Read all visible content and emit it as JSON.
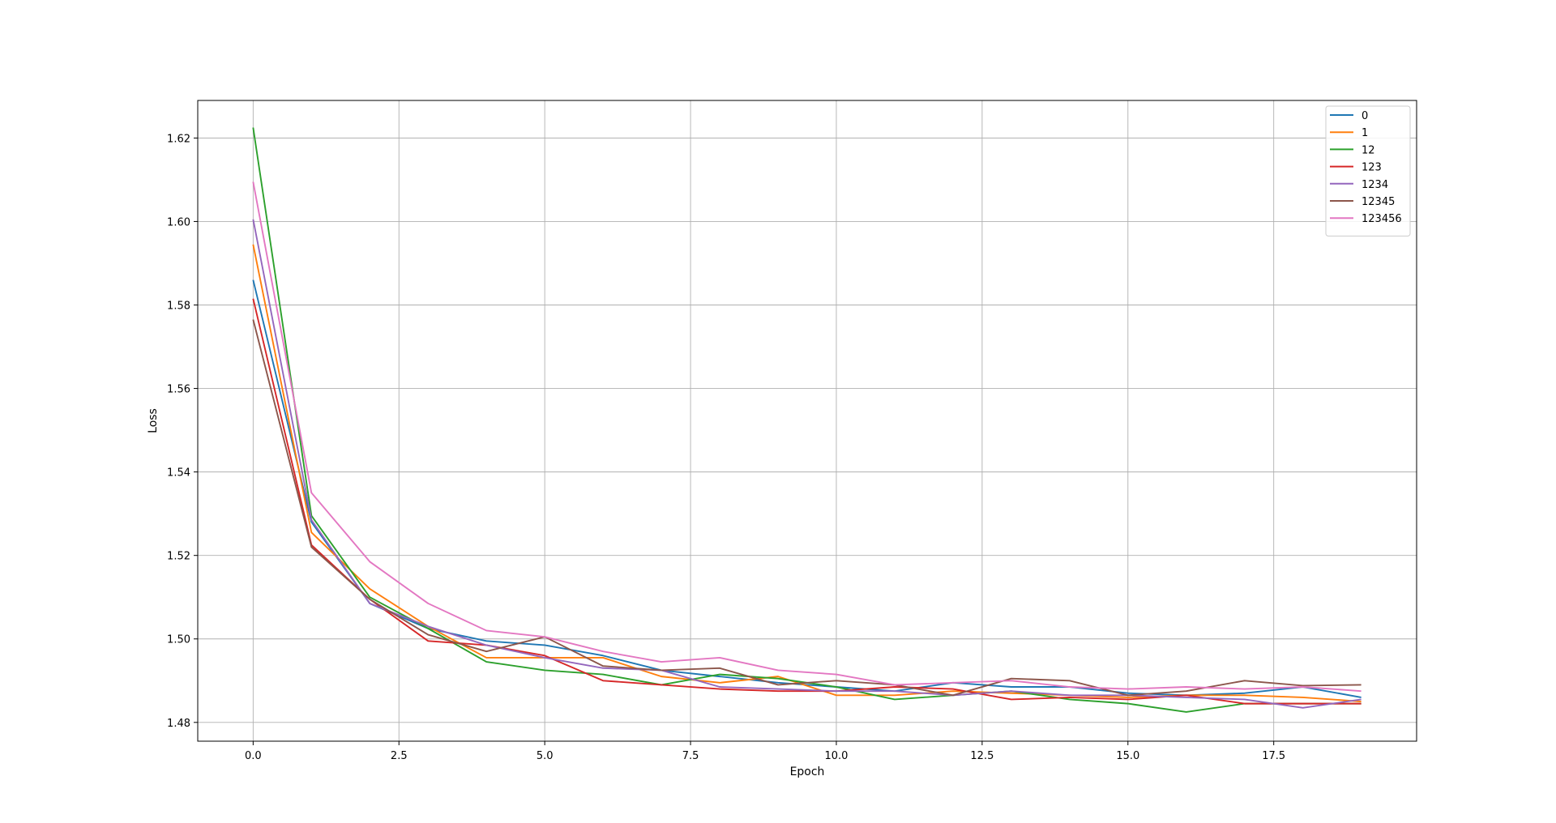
{
  "chart_data": {
    "type": "line",
    "title": "",
    "xlabel": "Epoch",
    "ylabel": "Loss",
    "xlim": [
      -0.95,
      19.95
    ],
    "ylim": [
      1.4755,
      1.629
    ],
    "xticks": [
      0.0,
      2.5,
      5.0,
      7.5,
      10.0,
      12.5,
      15.0,
      17.5
    ],
    "xtick_labels": [
      "0.0",
      "2.5",
      "5.0",
      "7.5",
      "10.0",
      "12.5",
      "15.0",
      "17.5"
    ],
    "yticks": [
      1.48,
      1.5,
      1.52,
      1.54,
      1.56,
      1.58,
      1.6,
      1.62
    ],
    "ytick_labels": [
      "1.48",
      "1.50",
      "1.52",
      "1.54",
      "1.56",
      "1.58",
      "1.60",
      "1.62"
    ],
    "grid": true,
    "legend_position": "top-right",
    "x": [
      0,
      1,
      2,
      3,
      4,
      5,
      6,
      7,
      8,
      9,
      10,
      11,
      12,
      13,
      14,
      15,
      16,
      17,
      18,
      19
    ],
    "series": [
      {
        "name": "0",
        "color": "#1f77b4",
        "values": [
          1.586,
          1.528,
          1.5085,
          1.5025,
          1.4995,
          1.4985,
          1.496,
          1.4925,
          1.491,
          1.4895,
          1.4885,
          1.4875,
          1.4895,
          1.4885,
          1.4885,
          1.487,
          1.4865,
          1.487,
          1.4885,
          1.486
        ]
      },
      {
        "name": "1",
        "color": "#ff7f0e",
        "values": [
          1.5945,
          1.5255,
          1.512,
          1.503,
          1.4955,
          1.4955,
          1.4955,
          1.491,
          1.4895,
          1.491,
          1.4865,
          1.4865,
          1.4875,
          1.487,
          1.4865,
          1.486,
          1.4865,
          1.4865,
          1.486,
          1.485
        ]
      },
      {
        "name": "12",
        "color": "#2ca02c",
        "values": [
          1.6225,
          1.5295,
          1.51,
          1.5025,
          1.4945,
          1.4925,
          1.4915,
          1.489,
          1.4915,
          1.4905,
          1.4885,
          1.4855,
          1.4865,
          1.4875,
          1.4855,
          1.4845,
          1.4825,
          1.4845,
          1.4845,
          1.4845
        ]
      },
      {
        "name": "123",
        "color": "#d62728",
        "values": [
          1.5815,
          1.5225,
          1.5095,
          1.4995,
          1.4985,
          1.496,
          1.49,
          1.489,
          1.488,
          1.4875,
          1.4875,
          1.4885,
          1.488,
          1.4855,
          1.486,
          1.4855,
          1.4865,
          1.4845,
          1.4845,
          1.4845
        ]
      },
      {
        "name": "1234",
        "color": "#9467bd",
        "values": [
          1.6005,
          1.5285,
          1.5085,
          1.503,
          1.4985,
          1.4955,
          1.493,
          1.4925,
          1.4885,
          1.488,
          1.4875,
          1.4875,
          1.4865,
          1.4875,
          1.4865,
          1.4865,
          1.486,
          1.4855,
          1.4835,
          1.4855
        ]
      },
      {
        "name": "12345",
        "color": "#8c564b",
        "values": [
          1.5765,
          1.522,
          1.5095,
          1.501,
          1.497,
          1.5005,
          1.4935,
          1.4925,
          1.493,
          1.489,
          1.49,
          1.489,
          1.4865,
          1.4905,
          1.49,
          1.4865,
          1.4875,
          1.49,
          1.4888,
          1.489
        ]
      },
      {
        "name": "123456",
        "color": "#e377c2",
        "values": [
          1.6095,
          1.535,
          1.5185,
          1.5085,
          1.502,
          1.5005,
          1.497,
          1.4945,
          1.4955,
          1.4925,
          1.4915,
          1.489,
          1.4895,
          1.49,
          1.4885,
          1.488,
          1.4885,
          1.488,
          1.4885,
          1.4875
        ]
      }
    ]
  }
}
